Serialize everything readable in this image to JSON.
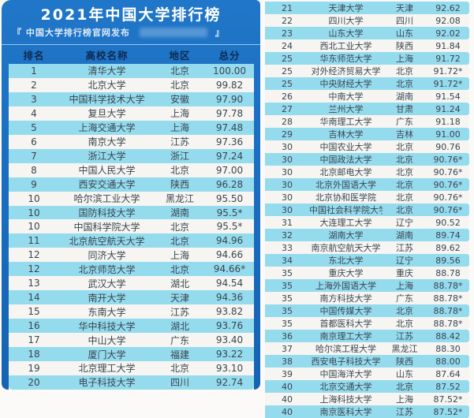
{
  "header": {
    "title": "2021年中国大学排行榜",
    "subtitle_prefix": "『 中国大学排行榜官网发布",
    "subtitle_suffix": "』"
  },
  "colors": {
    "panel_blue": "#1a6cbd",
    "row_cyan": "#95dbee",
    "row_white": "#f7f5f2",
    "header_text": "#0e2a52",
    "title_text": "#ffffff",
    "row_text": "#39454f"
  },
  "chart_data": {
    "type": "table",
    "title": "2021年中国大学排行榜",
    "subtitle": "『 中国大学排行榜官网发布 』",
    "columns": [
      "排名",
      "高校名称",
      "地区",
      "总分"
    ],
    "left": {
      "rows": [
        [
          "1",
          "清华大学",
          "北京",
          "100.00"
        ],
        [
          "2",
          "北京大学",
          "北京",
          "99.82"
        ],
        [
          "3",
          "中国科学技术大学",
          "安徽",
          "97.90"
        ],
        [
          "4",
          "复旦大学",
          "上海",
          "97.78"
        ],
        [
          "5",
          "上海交通大学",
          "上海",
          "97.48"
        ],
        [
          "6",
          "南京大学",
          "江苏",
          "97.36"
        ],
        [
          "7",
          "浙江大学",
          "浙江",
          "97.24"
        ],
        [
          "8",
          "中国人民大学",
          "北京",
          "97.00"
        ],
        [
          "9",
          "西安交通大学",
          "陕西",
          "96.28"
        ],
        [
          "10",
          "哈尔滨工业大学",
          "黑龙江",
          "95.50"
        ],
        [
          "10",
          "国防科技大学",
          "湖南",
          "95.5*"
        ],
        [
          "10",
          "中国科学院大学",
          "北京",
          "95.5*"
        ],
        [
          "11",
          "北京航空航天大学",
          "北京",
          "94.96"
        ],
        [
          "12",
          "同济大学",
          "上海",
          "94.66"
        ],
        [
          "12",
          "北京师范大学",
          "北京",
          "94.66*"
        ],
        [
          "13",
          "武汉大学",
          "湖北",
          "94.54"
        ],
        [
          "14",
          "南开大学",
          "天津",
          "94.36"
        ],
        [
          "15",
          "东南大学",
          "江苏",
          "93.82"
        ],
        [
          "16",
          "华中科技大学",
          "湖北",
          "93.76"
        ],
        [
          "17",
          "中山大学",
          "广东",
          "93.40"
        ],
        [
          "18",
          "厦门大学",
          "福建",
          "93.22"
        ],
        [
          "19",
          "北京理工大学",
          "北京",
          "93.10"
        ],
        [
          "20",
          "电子科技大学",
          "四川",
          "92.74"
        ]
      ]
    },
    "right": {
      "rows": [
        [
          "21",
          "天津大学",
          "天津",
          "92.62"
        ],
        [
          "22",
          "四川大学",
          "四川",
          "92.08"
        ],
        [
          "23",
          "山东大学",
          "山东",
          "92.02"
        ],
        [
          "24",
          "西北工业大学",
          "陕西",
          "91.84"
        ],
        [
          "25",
          "华东师范大学",
          "上海",
          "91.72"
        ],
        [
          "25",
          "对外经济贸易大学",
          "北京",
          "91.72*"
        ],
        [
          "25",
          "中央财经大学",
          "北京",
          "91.72*"
        ],
        [
          "26",
          "中南大学",
          "湖南",
          "91.54"
        ],
        [
          "27",
          "兰州大学",
          "甘肃",
          "91.24"
        ],
        [
          "28",
          "华南理工大学",
          "广东",
          "91.18"
        ],
        [
          "29",
          "吉林大学",
          "吉林",
          "91.00"
        ],
        [
          "30",
          "中国农业大学",
          "北京",
          "90.76"
        ],
        [
          "30",
          "中国政法大学",
          "北京",
          "90.76*"
        ],
        [
          "30",
          "北京邮电大学",
          "北京",
          "90.76*"
        ],
        [
          "30",
          "北京外国语大学",
          "北京",
          "90.76*"
        ],
        [
          "30",
          "北京协和医学院",
          "北京",
          "90.76*"
        ],
        [
          "30",
          "中国社会科学院大学",
          "北京",
          "90.76*"
        ],
        [
          "31",
          "大连理工大学",
          "辽宁",
          "90.52"
        ],
        [
          "32",
          "湖南大学",
          "湖南",
          "89.74"
        ],
        [
          "33",
          "南京航空航天大学",
          "江苏",
          "89.62"
        ],
        [
          "34",
          "东北大学",
          "辽宁",
          "89.56"
        ],
        [
          "35",
          "重庆大学",
          "重庆",
          "88.78"
        ],
        [
          "35",
          "上海外国语大学",
          "上海",
          "88.78*"
        ],
        [
          "35",
          "南方科技大学",
          "广东",
          "88.78*"
        ],
        [
          "35",
          "中国传媒大学",
          "北京",
          "88.78*"
        ],
        [
          "35",
          "首都医科大学",
          "北京",
          "88.78*"
        ],
        [
          "36",
          "南京理工大学",
          "江苏",
          "88.42"
        ],
        [
          "37",
          "哈尔滨工程大学",
          "黑龙江",
          "88.30"
        ],
        [
          "38",
          "西安电子科技大学",
          "陕西",
          "88.00"
        ],
        [
          "39",
          "中国海洋大学",
          "山东",
          "87.64"
        ],
        [
          "40",
          "北京交通大学",
          "北京",
          "87.52"
        ],
        [
          "40",
          "上海科技大学",
          "上海",
          "87.52*"
        ],
        [
          "40",
          "南京医科大学",
          "江苏",
          "87.52*"
        ]
      ]
    }
  }
}
